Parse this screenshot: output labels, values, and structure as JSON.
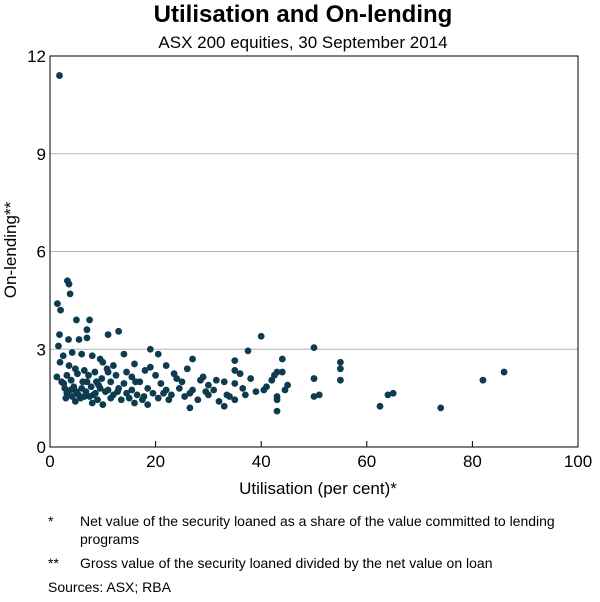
{
  "chart_data": {
    "type": "scatter",
    "title": "Utilisation and On-lending",
    "subtitle": "ASX 200 equities, 30 September 2014",
    "xlabel": "Utilisation (per cent)*",
    "ylabel": "On-lending**",
    "xlim": [
      0,
      100
    ],
    "ylim": [
      0,
      12
    ],
    "xticks": [
      0,
      20,
      40,
      60,
      80,
      100
    ],
    "yticks": [
      0,
      3,
      6,
      9,
      12
    ],
    "grid": "horizontal",
    "series": [
      {
        "name": "ASX 200 equities",
        "color": "#0d3b4f",
        "points": [
          [
            1.8,
            11.4
          ],
          [
            3.3,
            5.1
          ],
          [
            3.6,
            5.0
          ],
          [
            3.8,
            4.7
          ],
          [
            1.4,
            4.4
          ],
          [
            2.0,
            4.2
          ],
          [
            5.0,
            3.9
          ],
          [
            7.5,
            3.9
          ],
          [
            7.0,
            3.6
          ],
          [
            13.0,
            3.55
          ],
          [
            11.0,
            3.45
          ],
          [
            40.0,
            3.4
          ],
          [
            1.8,
            3.45
          ],
          [
            3.5,
            3.3
          ],
          [
            5.5,
            3.3
          ],
          [
            7.0,
            3.35
          ],
          [
            1.6,
            3.1
          ],
          [
            19.0,
            3.0
          ],
          [
            50.0,
            3.05
          ],
          [
            2.5,
            2.8
          ],
          [
            4.2,
            2.9
          ],
          [
            6.0,
            2.85
          ],
          [
            8.0,
            2.8
          ],
          [
            9.5,
            2.7
          ],
          [
            14.0,
            2.85
          ],
          [
            20.5,
            2.85
          ],
          [
            37.5,
            2.95
          ],
          [
            1.9,
            2.6
          ],
          [
            3.6,
            2.5
          ],
          [
            10.0,
            2.6
          ],
          [
            12.0,
            2.5
          ],
          [
            16.0,
            2.55
          ],
          [
            22.0,
            2.5
          ],
          [
            27.0,
            2.7
          ],
          [
            35.0,
            2.65
          ],
          [
            44.0,
            2.7
          ],
          [
            55.0,
            2.6
          ],
          [
            4.8,
            2.4
          ],
          [
            6.5,
            2.35
          ],
          [
            8.5,
            2.3
          ],
          [
            11.0,
            2.3
          ],
          [
            14.5,
            2.3
          ],
          [
            18.0,
            2.35
          ],
          [
            26.0,
            2.4
          ],
          [
            35.0,
            2.35
          ],
          [
            43.0,
            2.3
          ],
          [
            55.0,
            2.4
          ],
          [
            86.0,
            2.3
          ],
          [
            1.3,
            2.15
          ],
          [
            3.2,
            2.2
          ],
          [
            5.2,
            2.25
          ],
          [
            7.3,
            2.2
          ],
          [
            9.8,
            2.1
          ],
          [
            12.5,
            2.2
          ],
          [
            15.5,
            2.15
          ],
          [
            20.0,
            2.2
          ],
          [
            24.0,
            2.1
          ],
          [
            29.0,
            2.15
          ],
          [
            33.0,
            2.0
          ],
          [
            38.0,
            2.1
          ],
          [
            42.0,
            2.05
          ],
          [
            50.0,
            2.1
          ],
          [
            55.0,
            2.05
          ],
          [
            2.2,
            2.0
          ],
          [
            4.0,
            2.05
          ],
          [
            6.2,
            2.0
          ],
          [
            8.8,
            2.0
          ],
          [
            11.5,
            2.0
          ],
          [
            14.0,
            1.95
          ],
          [
            17.0,
            2.0
          ],
          [
            21.0,
            1.95
          ],
          [
            25.0,
            2.0
          ],
          [
            30.0,
            1.9
          ],
          [
            35.0,
            1.95
          ],
          [
            41.0,
            1.85
          ],
          [
            45.0,
            1.9
          ],
          [
            82.0,
            2.05
          ],
          [
            2.8,
            1.8
          ],
          [
            4.5,
            1.85
          ],
          [
            6.0,
            1.8
          ],
          [
            7.8,
            1.85
          ],
          [
            9.5,
            1.8
          ],
          [
            11.0,
            1.75
          ],
          [
            13.0,
            1.8
          ],
          [
            15.5,
            1.75
          ],
          [
            18.5,
            1.8
          ],
          [
            22.0,
            1.75
          ],
          [
            24.5,
            1.8
          ],
          [
            27.0,
            1.75
          ],
          [
            31.0,
            1.75
          ],
          [
            36.5,
            1.8
          ],
          [
            39.0,
            1.7
          ],
          [
            44.5,
            1.75
          ],
          [
            3.2,
            1.65
          ],
          [
            5.0,
            1.7
          ],
          [
            6.8,
            1.7
          ],
          [
            8.6,
            1.65
          ],
          [
            10.5,
            1.7
          ],
          [
            12.0,
            1.6
          ],
          [
            14.5,
            1.65
          ],
          [
            16.5,
            1.6
          ],
          [
            19.5,
            1.65
          ],
          [
            23.0,
            1.6
          ],
          [
            26.5,
            1.65
          ],
          [
            30.0,
            1.6
          ],
          [
            34.0,
            1.55
          ],
          [
            37.0,
            1.6
          ],
          [
            43.0,
            1.55
          ],
          [
            50.0,
            1.55
          ],
          [
            51.0,
            1.6
          ],
          [
            65.0,
            1.65
          ],
          [
            64.0,
            1.6
          ],
          [
            3.0,
            1.5
          ],
          [
            4.2,
            1.55
          ],
          [
            5.8,
            1.5
          ],
          [
            7.5,
            1.55
          ],
          [
            9.0,
            1.45
          ],
          [
            11.5,
            1.5
          ],
          [
            13.5,
            1.45
          ],
          [
            15.0,
            1.5
          ],
          [
            17.5,
            1.45
          ],
          [
            20.5,
            1.5
          ],
          [
            22.5,
            1.45
          ],
          [
            28.0,
            1.45
          ],
          [
            32.0,
            1.4
          ],
          [
            35.0,
            1.45
          ],
          [
            43.0,
            1.45
          ],
          [
            4.8,
            1.4
          ],
          [
            8.0,
            1.35
          ],
          [
            10.0,
            1.3
          ],
          [
            16.0,
            1.35
          ],
          [
            18.5,
            1.3
          ],
          [
            26.5,
            1.2
          ],
          [
            33.0,
            1.25
          ],
          [
            43.0,
            1.1
          ],
          [
            62.5,
            1.25
          ],
          [
            74.0,
            1.2
          ],
          [
            2.6,
            1.95
          ],
          [
            3.9,
            1.75
          ],
          [
            5.4,
            1.6
          ],
          [
            6.5,
            1.55
          ],
          [
            7.0,
            2.0
          ],
          [
            8.2,
            1.6
          ],
          [
            9.2,
            1.9
          ],
          [
            10.8,
            2.4
          ],
          [
            12.8,
            1.7
          ],
          [
            16.2,
            2.0
          ],
          [
            17.8,
            1.55
          ],
          [
            19.0,
            2.45
          ],
          [
            21.5,
            1.65
          ],
          [
            23.5,
            2.25
          ],
          [
            25.5,
            1.55
          ],
          [
            28.5,
            2.05
          ],
          [
            29.5,
            1.7
          ],
          [
            31.5,
            2.05
          ],
          [
            33.5,
            1.6
          ],
          [
            36.0,
            2.25
          ],
          [
            40.5,
            1.75
          ],
          [
            42.5,
            2.2
          ],
          [
            44.0,
            2.3
          ]
        ]
      }
    ]
  },
  "notes": [
    {
      "mark": "*",
      "text": "Net value of the security loaned as a share of the value committed to lending programs"
    },
    {
      "mark": "**",
      "text": "Gross value of the security loaned divided by the net value on loan"
    }
  ],
  "sources": "Sources:   ASX; RBA"
}
